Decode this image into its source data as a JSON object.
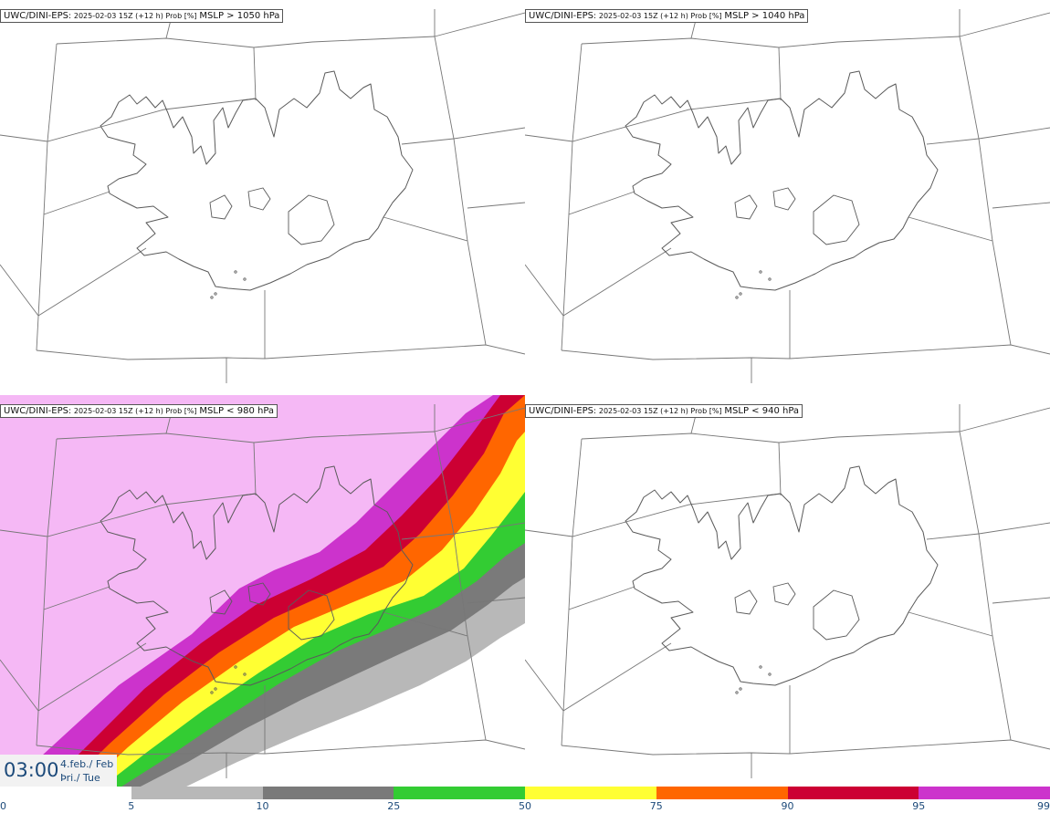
{
  "panels": [
    {
      "model": "UWC/DINI-EPS",
      "run": "2025-02-03 15Z (+12 h) Prob [%]",
      "threshold": "MSLP > 1050 hPa",
      "filled": false
    },
    {
      "model": "UWC/DINI-EPS",
      "run": "2025-02-03 15Z (+12 h) Prob [%]",
      "threshold": "MSLP > 1040 hPa",
      "filled": false
    },
    {
      "model": "UWC/DINI-EPS",
      "run": "2025-02-03 15Z (+12 h) Prob [%]",
      "threshold": "MSLP < 980 hPa",
      "filled": true
    },
    {
      "model": "UWC/DINI-EPS",
      "run": "2025-02-03 15Z (+12 h) Prob [%]",
      "threshold": "MSLP < 940 hPa",
      "filled": false
    }
  ],
  "time": {
    "clock": "03:00",
    "date_line1": "4.feb./ Feb",
    "date_line2": "Þri./ Tue"
  },
  "legend": {
    "ticks": [
      "0",
      "5",
      "10",
      "25",
      "50",
      "75",
      "90",
      "95",
      "99"
    ],
    "colors": [
      "#ffffff",
      "#b8b8b8",
      "#7a7a7a",
      "#33cc33",
      "#ffff33",
      "#ff6600",
      "#cc0033",
      "#cc33cc",
      "#f5b8f5"
    ]
  }
}
